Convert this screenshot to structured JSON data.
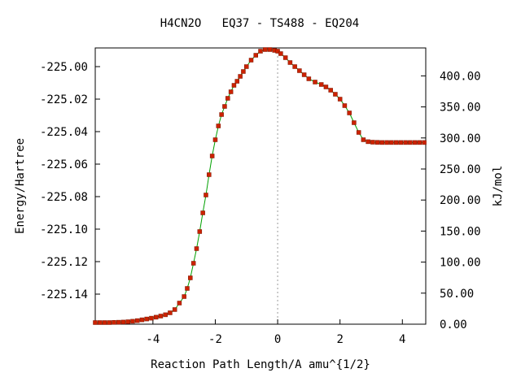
{
  "chart_data": {
    "type": "line",
    "title": "H4CN2O   EQ37 - TS488 - EQ204",
    "xlabel": "Reaction Path Length/A amu^{1/2}",
    "ylabel": "Energy/Hartree",
    "y2label": "kJ/mol",
    "xlim": [
      -5.85,
      4.75
    ],
    "ylim": [
      -225.1585,
      -224.9885
    ],
    "y2lim": [
      0,
      445
    ],
    "x_ticks": [
      "-4",
      "-2",
      "0",
      "2",
      "4"
    ],
    "x_tick_values": [
      -4,
      -2,
      0,
      2,
      4
    ],
    "y_ticks": [
      "-225.00",
      "-225.02",
      "-225.04",
      "-225.06",
      "-225.08",
      "-225.10",
      "-225.12",
      "-225.14"
    ],
    "y_tick_values": [
      -225.0,
      -225.02,
      -225.04,
      -225.06,
      -225.08,
      -225.1,
      -225.12,
      -225.14
    ],
    "y2_ticks": [
      "0.00",
      "50.00",
      "100.00",
      "150.00",
      "200.00",
      "250.00",
      "300.00",
      "350.00",
      "400.00"
    ],
    "y2_tick_values": [
      0,
      50,
      100,
      150,
      200,
      250,
      300,
      350,
      400
    ],
    "ts_marker_x": 0,
    "grid": false,
    "colors": {
      "line": "#00a000",
      "marker": "#cc2200",
      "ts_line": "#999999",
      "axis": "#000000"
    },
    "series": [
      {
        "x": [
          -5.85,
          -5.7,
          -5.55,
          -5.4,
          -5.25,
          -5.1,
          -4.95,
          -4.8,
          -4.65,
          -4.5,
          -4.35,
          -4.2,
          -4.05,
          -3.9,
          -3.75,
          -3.6,
          -3.45,
          -3.3,
          -3.15,
          -3.0,
          -2.9,
          -2.8,
          -2.7,
          -2.6,
          -2.5,
          -2.4,
          -2.3,
          -2.2,
          -2.1,
          -2.0,
          -1.9,
          -1.8,
          -1.7,
          -1.6,
          -1.5,
          -1.4,
          -1.3,
          -1.2,
          -1.1,
          -1.0,
          -0.85,
          -0.7,
          -0.55,
          -0.4,
          -0.25,
          -0.1,
          0.0,
          0.1,
          0.25,
          0.4,
          0.55,
          0.7,
          0.85,
          1.0,
          1.2,
          1.4,
          1.55,
          1.7,
          1.85,
          2.0,
          2.15,
          2.3,
          2.45,
          2.6,
          2.75,
          2.9,
          3.05,
          3.2,
          3.35,
          3.5,
          3.65,
          3.8,
          3.95,
          4.1,
          4.25,
          4.4,
          4.55,
          4.7
        ],
        "y": [
          -225.1575,
          -225.1575,
          -225.1575,
          -225.1575,
          -225.1574,
          -225.1573,
          -225.1572,
          -225.157,
          -225.1567,
          -225.1563,
          -225.1558,
          -225.1553,
          -225.1548,
          -225.1542,
          -225.1535,
          -225.1527,
          -225.1515,
          -225.1495,
          -225.1455,
          -225.1415,
          -225.1365,
          -225.13,
          -225.121,
          -225.112,
          -225.1015,
          -225.09,
          -225.079,
          -225.0665,
          -225.055,
          -225.045,
          -225.0365,
          -225.0295,
          -225.0245,
          -225.0195,
          -225.0155,
          -225.0115,
          -225.009,
          -225.006,
          -225.003,
          -225.0,
          -224.996,
          -224.993,
          -224.9905,
          -224.9895,
          -224.9895,
          -224.99,
          -224.9905,
          -224.992,
          -224.9945,
          -224.9975,
          -225.0,
          -225.0025,
          -225.005,
          -225.0075,
          -225.0095,
          -225.011,
          -225.0125,
          -225.0145,
          -225.017,
          -225.02,
          -225.024,
          -225.0285,
          -225.0345,
          -225.0405,
          -225.045,
          -225.0462,
          -225.0465,
          -225.0466,
          -225.0467,
          -225.0467,
          -225.0467,
          -225.0467,
          -225.0467,
          -225.0467,
          -225.0467,
          -225.0467,
          -225.0467,
          -225.0467
        ]
      }
    ]
  }
}
